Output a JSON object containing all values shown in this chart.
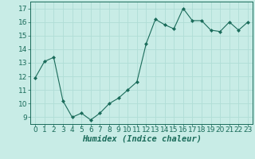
{
  "x": [
    0,
    1,
    2,
    3,
    4,
    5,
    6,
    7,
    8,
    9,
    10,
    11,
    12,
    13,
    14,
    15,
    16,
    17,
    18,
    19,
    20,
    21,
    22,
    23
  ],
  "y": [
    11.9,
    13.1,
    13.4,
    10.2,
    9.0,
    9.3,
    8.8,
    9.3,
    10.0,
    10.4,
    11.0,
    11.6,
    14.4,
    16.2,
    15.8,
    15.5,
    17.0,
    16.1,
    16.1,
    15.4,
    15.3,
    16.0,
    15.4,
    16.0
  ],
  "line_color": "#1a6b5a",
  "marker": "D",
  "marker_size": 2.0,
  "bg_color": "#c8ece6",
  "grid_color": "#b0ddd6",
  "xlabel": "Humidex (Indice chaleur)",
  "ylim": [
    8.5,
    17.5
  ],
  "xlim": [
    -0.5,
    23.5
  ],
  "yticks": [
    9,
    10,
    11,
    12,
    13,
    14,
    15,
    16,
    17
  ],
  "xtick_labels": [
    "0",
    "1",
    "2",
    "3",
    "4",
    "5",
    "6",
    "7",
    "8",
    "9",
    "10",
    "11",
    "12",
    "13",
    "14",
    "15",
    "16",
    "17",
    "18",
    "19",
    "20",
    "21",
    "22",
    "23"
  ],
  "xlabel_fontsize": 7.5,
  "tick_fontsize": 6.5,
  "linewidth": 0.8
}
